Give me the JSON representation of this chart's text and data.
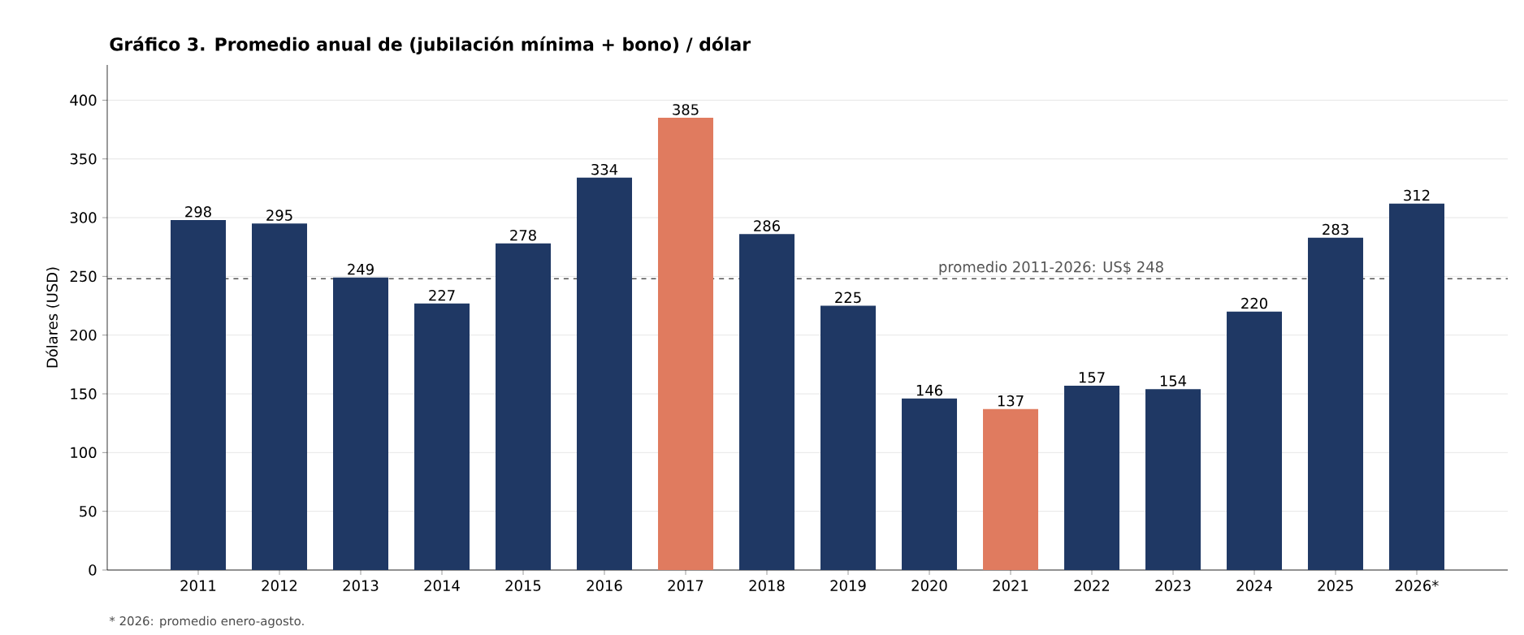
{
  "chart_data": {
    "type": "bar",
    "title": "Gráfico 3. Promedio anual de (jubilación mínima + bono) / dólar",
    "ylabel": "Dólares (USD)",
    "categories": [
      "2011",
      "2012",
      "2013",
      "2014",
      "2015",
      "2016",
      "2017",
      "2018",
      "2019",
      "2020",
      "2021",
      "2022",
      "2023",
      "2024",
      "2025",
      "2026*"
    ],
    "values": [
      298,
      295,
      249,
      227,
      278,
      334,
      385,
      286,
      225,
      146,
      137,
      157,
      154,
      220,
      283,
      312
    ],
    "colors": [
      "#1f3864",
      "#1f3864",
      "#1f3864",
      "#1f3864",
      "#1f3864",
      "#1f3864",
      "#e07b5f",
      "#1f3864",
      "#1f3864",
      "#1f3864",
      "#e07b5f",
      "#1f3864",
      "#1f3864",
      "#1f3864",
      "#1f3864",
      "#1f3864"
    ],
    "data_labels": true,
    "ylim": [
      0,
      430
    ],
    "yticks": [
      0,
      50,
      100,
      150,
      200,
      250,
      300,
      350,
      400
    ],
    "grid": "y",
    "ref_lines": [
      {
        "axis": "y",
        "value": 248,
        "label": "promedio 2011-2026: US$ 248",
        "color": "#555555",
        "line_style": "dashed"
      }
    ],
    "annotations": [
      "* 2026: promedio enero-agosto."
    ]
  }
}
